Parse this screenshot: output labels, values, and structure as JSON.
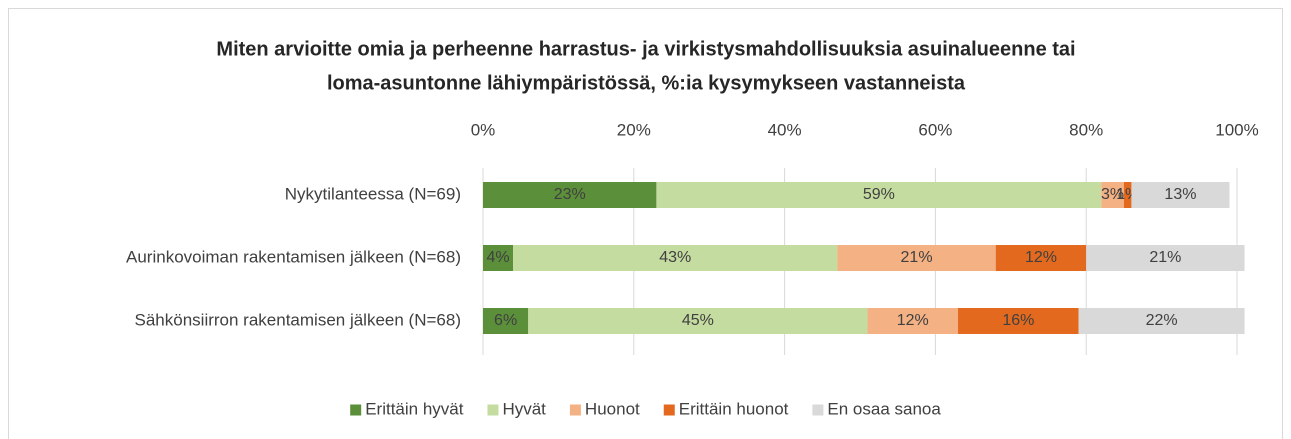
{
  "chart_data": {
    "type": "stacked_barh",
    "title": [
      "Miten arvioitte omia ja perheenne harrastus- ja virkistysmahdollisuuksia asuinalueenne tai",
      "loma-asuntonne lähiympäristössä, %:ia kysymykseen vastanneista"
    ],
    "categories": [
      "Nykytilanteessa (N=69)",
      "Aurinkovoiman rakentamisen jälkeen (N=68)",
      "Sähkönsiirron rakentamisen jälkeen (N=68)"
    ],
    "series": [
      {
        "name": "Erittäin hyvät",
        "color": "#5b8f3a",
        "values": [
          23,
          4,
          6
        ],
        "value_labels": [
          "23%",
          "4%",
          "6%"
        ]
      },
      {
        "name": "Hyvät",
        "color": "#c5dca0",
        "values": [
          59,
          43,
          45
        ],
        "value_labels": [
          "59%",
          "43%",
          "45%"
        ]
      },
      {
        "name": "Huonot",
        "color": "#f4b183",
        "values": [
          3,
          21,
          12
        ],
        "value_labels": [
          "3%",
          "21%",
          "12%"
        ]
      },
      {
        "name": "Erittäin huonot",
        "color": "#e2691e",
        "values": [
          1,
          12,
          16
        ],
        "value_labels": [
          "1%",
          "12%",
          "16%"
        ]
      },
      {
        "name": "En osaa sanoa",
        "color": "#d9d9d9",
        "values": [
          13,
          21,
          22
        ],
        "value_labels": [
          "13%",
          "21%",
          "22%"
        ]
      }
    ],
    "xlim": [
      0,
      100
    ],
    "xticks": [
      {
        "value": 0,
        "label": "0%"
      },
      {
        "value": 20,
        "label": "20%"
      },
      {
        "value": 40,
        "label": "40%"
      },
      {
        "value": 60,
        "label": "60%"
      },
      {
        "value": 80,
        "label": "80%"
      },
      {
        "value": 100,
        "label": "100%"
      }
    ],
    "grid": true,
    "legend": "bottom"
  }
}
